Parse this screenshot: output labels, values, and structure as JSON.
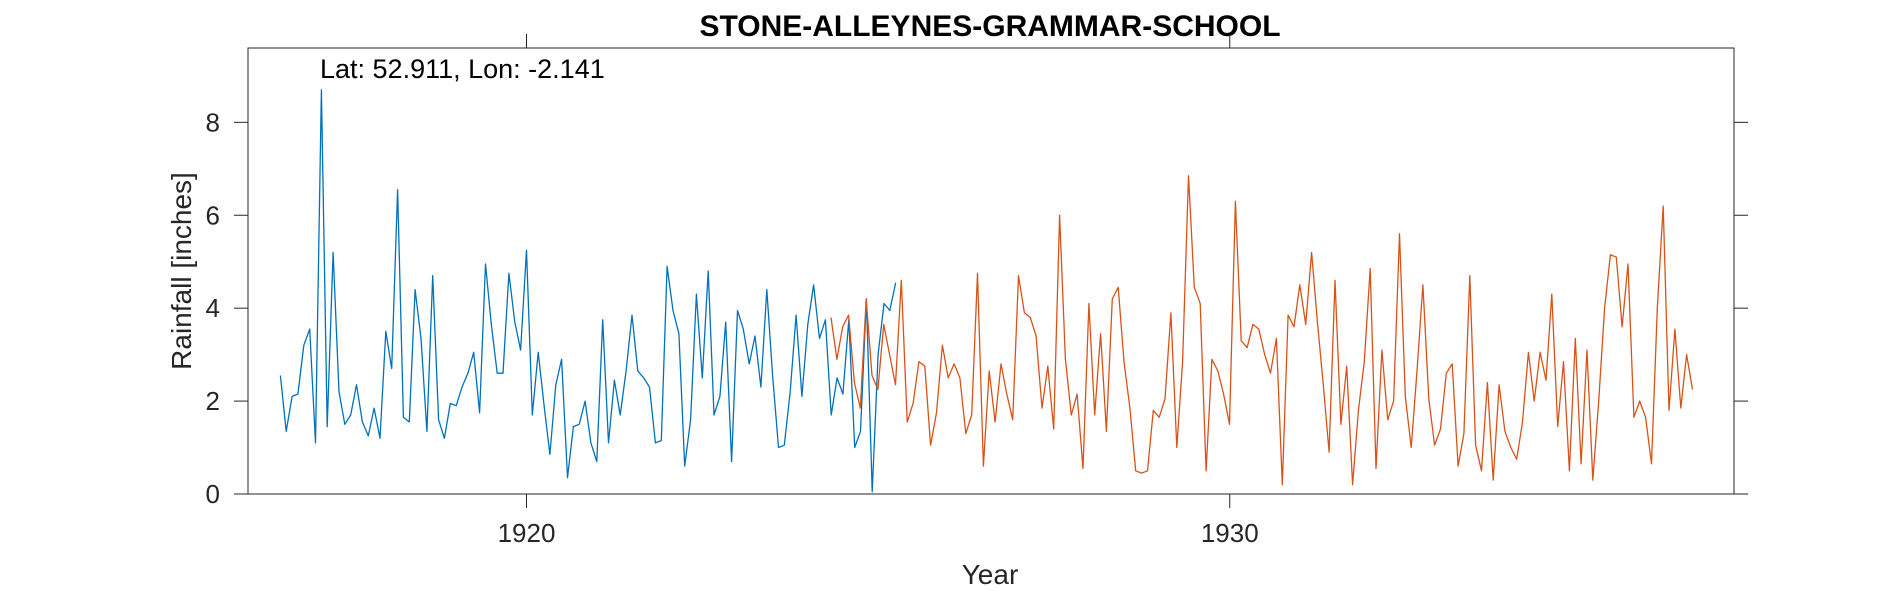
{
  "chart_data": {
    "type": "line",
    "title": "STONE-ALLEYNES-GRAMMAR-SCHOOL",
    "annotation": "Lat: 52.911, Lon: -2.141",
    "xlabel": "Year",
    "ylabel": "Rainfall [inches]",
    "xlim": [
      1916.04,
      1937.17
    ],
    "ylim": [
      0,
      9.6
    ],
    "xticks": [
      1920,
      1930
    ],
    "xtick_labels": [
      "1920",
      "1930"
    ],
    "yticks": [
      0,
      2,
      4,
      6,
      8
    ],
    "ytick_labels": [
      "0",
      "2",
      "4",
      "6",
      "8"
    ],
    "grid": false,
    "legend": "none",
    "colors": {
      "series1": "#0072BD",
      "series2": "#D95319",
      "axis": "#262626"
    },
    "series": [
      {
        "x_start": 1916.5,
        "x_step": 0.08333,
        "values": [
          2.55,
          1.35,
          2.1,
          2.15,
          3.2,
          3.55,
          1.1,
          8.7,
          1.45,
          5.2,
          2.2,
          1.5,
          1.7,
          2.35,
          1.55,
          1.25,
          1.85,
          1.2,
          3.5,
          2.7,
          6.55,
          1.65,
          1.55,
          4.4,
          3.35,
          1.35,
          4.7,
          1.6,
          1.2,
          1.95,
          1.9,
          2.3,
          2.6,
          3.05,
          1.75,
          4.95,
          3.65,
          2.6,
          2.6,
          4.75,
          3.7,
          3.1,
          5.25,
          1.7,
          3.05,
          1.9,
          0.85,
          2.35,
          2.9,
          0.35,
          1.45,
          1.5,
          2.0,
          1.1,
          0.7,
          3.75,
          1.1,
          2.45,
          1.7,
          2.65,
          3.85,
          2.65,
          2.5,
          2.3,
          1.1,
          1.15,
          4.9,
          3.95,
          3.45,
          0.6,
          1.6,
          4.3,
          2.5,
          4.8,
          1.7,
          2.1,
          3.7,
          0.7,
          3.95,
          3.55,
          2.8,
          3.4,
          2.3,
          4.4,
          2.55,
          1.0,
          1.05,
          2.2,
          3.85,
          2.1,
          3.65,
          4.5,
          3.35,
          3.75,
          1.7,
          2.5,
          2.15,
          3.75,
          1.0,
          1.35,
          4.2,
          0.05,
          3.0,
          4.1,
          3.95,
          4.55
        ]
      },
      {
        "x_start": 1924.33,
        "x_step": 0.08333,
        "values": [
          3.8,
          2.9,
          3.6,
          3.85,
          2.4,
          1.85,
          4.2,
          2.55,
          2.25,
          3.65,
          3.0,
          2.35,
          4.6,
          1.55,
          1.95,
          2.85,
          2.75,
          1.05,
          1.75,
          3.2,
          2.5,
          2.8,
          2.5,
          1.3,
          1.7,
          4.75,
          0.6,
          2.65,
          1.55,
          2.8,
          2.15,
          1.6,
          4.7,
          3.9,
          3.8,
          3.4,
          1.85,
          2.75,
          1.4,
          6.0,
          2.9,
          1.7,
          2.15,
          0.55,
          4.1,
          1.7,
          3.45,
          1.35,
          4.2,
          4.45,
          2.85,
          1.85,
          0.5,
          0.45,
          0.5,
          1.8,
          1.65,
          2.05,
          3.9,
          1.0,
          2.85,
          6.85,
          4.45,
          4.1,
          0.5,
          2.9,
          2.65,
          2.15,
          1.5,
          6.3,
          3.3,
          3.15,
          3.65,
          3.55,
          3.0,
          2.6,
          3.35,
          0.2,
          3.85,
          3.6,
          4.5,
          3.65,
          5.2,
          3.7,
          2.35,
          0.9,
          4.6,
          1.5,
          2.75,
          0.2,
          1.8,
          2.85,
          4.85,
          0.55,
          3.1,
          1.6,
          2.0,
          5.6,
          2.1,
          1.0,
          2.65,
          4.5,
          2.05,
          1.05,
          1.4,
          2.6,
          2.8,
          0.6,
          1.3,
          4.7,
          1.05,
          0.5,
          2.4,
          0.3,
          2.35,
          1.35,
          1.0,
          0.75,
          1.55,
          3.05,
          2.0,
          3.05,
          2.45,
          4.3,
          1.45,
          2.85,
          0.5,
          3.35,
          0.65,
          3.1,
          0.3,
          2.0,
          4.0,
          5.15,
          5.1,
          3.6,
          4.95,
          1.65,
          2.0,
          1.65,
          0.65,
          4.0,
          6.2,
          1.8,
          3.55,
          1.85,
          3.0,
          2.25
        ]
      }
    ]
  }
}
